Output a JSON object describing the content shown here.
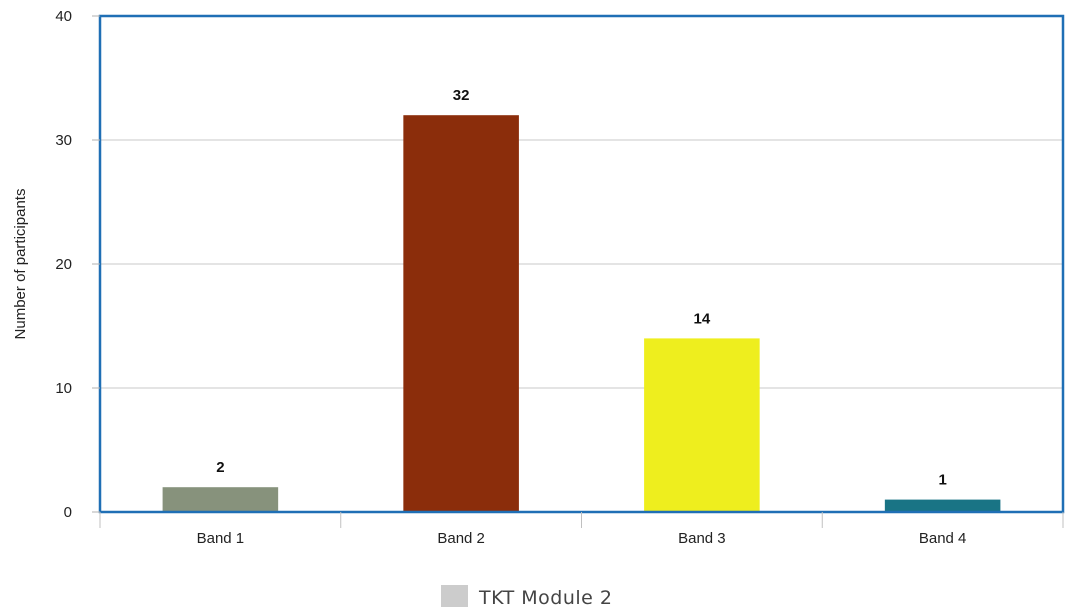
{
  "chart_data": {
    "type": "bar",
    "categories": [
      "Band 1",
      "Band 2",
      "Band 3",
      "Band 4"
    ],
    "series": [
      {
        "name": "TKT Module 2",
        "values": [
          2,
          32,
          14,
          1
        ]
      }
    ],
    "data_labels": [
      "2",
      "32",
      "14",
      "1"
    ],
    "bar_colors": [
      "#87927c",
      "#8b2d0b",
      "#eeee1e",
      "#197485"
    ],
    "title": "",
    "xlabel": "",
    "ylabel": "Number of participants",
    "ylim": [
      0,
      40
    ],
    "yticks": [
      0,
      10,
      20,
      30,
      40
    ],
    "grid": true,
    "frame_color": "#1f6fb5",
    "grid_color": "#c8c8c8",
    "legend": {
      "placement": "bottom-center",
      "label": "TKT Module 2",
      "swatch_color": "#cccccc"
    }
  }
}
